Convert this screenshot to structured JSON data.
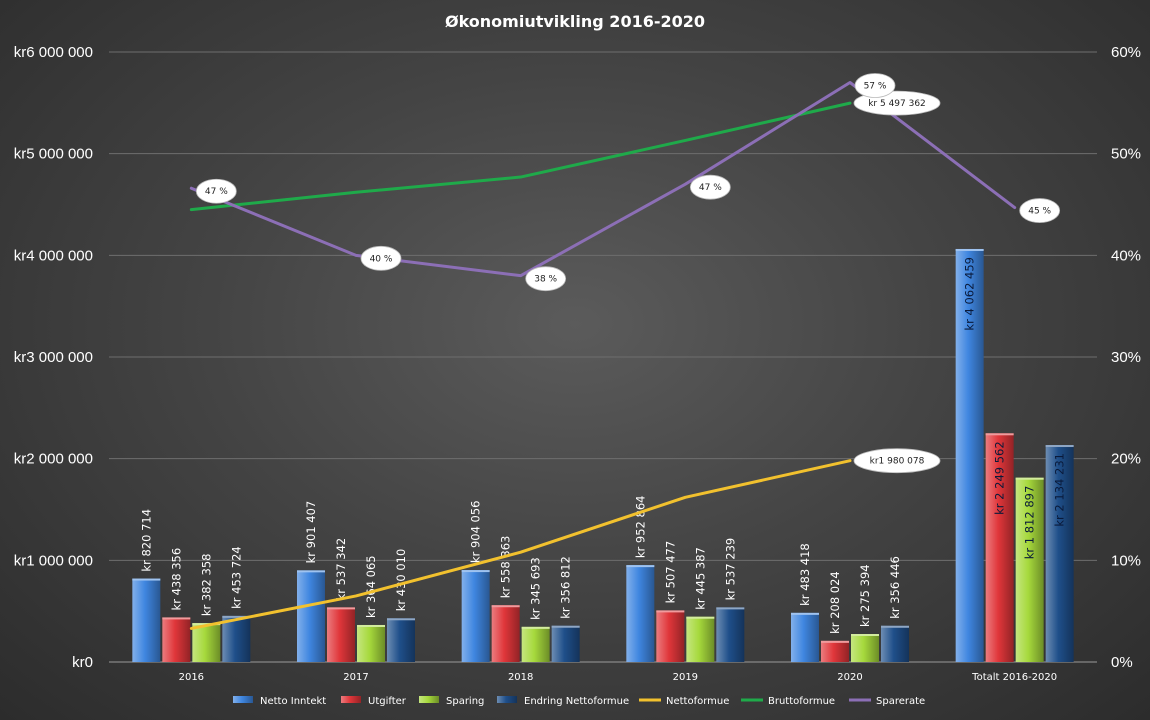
{
  "chart_data": {
    "type": "bar",
    "title": "Økonomiutvikling  2016-2020",
    "categories": [
      "2016",
      "2017",
      "2018",
      "2019",
      "2020",
      "Totalt 2016-2020"
    ],
    "ylim": [
      0,
      6000000
    ],
    "y2lim": [
      0,
      0.6
    ],
    "yticks": [
      "kr0",
      "kr1 000 000",
      "kr2 000 000",
      "kr3 000 000",
      "kr4 000 000",
      "kr5 000 000",
      "kr6 000 000"
    ],
    "y2ticks": [
      "0%",
      "10%",
      "20%",
      "30%",
      "40%",
      "50%",
      "60%"
    ],
    "grid": true,
    "legend_position": "bottom",
    "bar_series": [
      {
        "name": "Netto Inntekt",
        "color": "#3f86e0",
        "values": [
          820714,
          901407,
          904056,
          952864,
          483418,
          4062459
        ],
        "labels": [
          "kr 820 714",
          "kr 901 407",
          "kr 904 056",
          "kr 952 864",
          "kr 483 418",
          "kr 4 062 459"
        ]
      },
      {
        "name": "Utgifter",
        "color": "#e0363a",
        "values": [
          438356,
          537342,
          558363,
          507477,
          208024,
          2249562
        ],
        "labels": [
          "kr 438 356",
          "kr 537 342",
          "kr 558 363",
          "kr 507 477",
          "kr 208 024",
          "kr 2 249 562"
        ]
      },
      {
        "name": "Sparing",
        "color": "#a6d93c",
        "values": [
          382358,
          364065,
          345693,
          445387,
          275394,
          1812897
        ],
        "labels": [
          "kr 382 358",
          "kr 364 065",
          "kr 345 693",
          "kr 445 387",
          "kr 275 394",
          "kr 1 812 897"
        ]
      },
      {
        "name": "Endring Nettoformue",
        "color": "#1f4f8a",
        "values": [
          453724,
          430010,
          356812,
          537239,
          356446,
          2134231
        ],
        "labels": [
          "kr 453 724",
          "kr 430 010",
          "kr 356 812",
          "kr 537 239",
          "kr 356 446",
          "kr 2 134 231"
        ]
      }
    ],
    "line_series": [
      {
        "name": "Nettoformue",
        "color": "#f2c12e",
        "axis": "primary",
        "values": [
          330000,
          650000,
          1080000,
          1620000,
          1980078
        ],
        "callouts": [
          {
            "index": 4,
            "text": "kr1 980 078"
          }
        ]
      },
      {
        "name": "Bruttoformue",
        "color": "#1faa4a",
        "axis": "primary",
        "values": [
          4450000,
          4620000,
          4770000,
          5130000,
          5497362
        ],
        "callouts": [
          {
            "index": 4,
            "text": "kr 5 497 362"
          }
        ]
      },
      {
        "name": "Sparerate",
        "color": "#8c6fb6",
        "axis": "secondary",
        "values": [
          0.466,
          0.4,
          0.38,
          0.47,
          0.57,
          0.447
        ],
        "callouts": [
          {
            "index": 0,
            "text": "47 %"
          },
          {
            "index": 1,
            "text": "40 %"
          },
          {
            "index": 2,
            "text": "38 %"
          },
          {
            "index": 3,
            "text": "47 %"
          },
          {
            "index": 4,
            "text": "57 %"
          },
          {
            "index": 5,
            "text": "45 %"
          }
        ]
      }
    ]
  }
}
